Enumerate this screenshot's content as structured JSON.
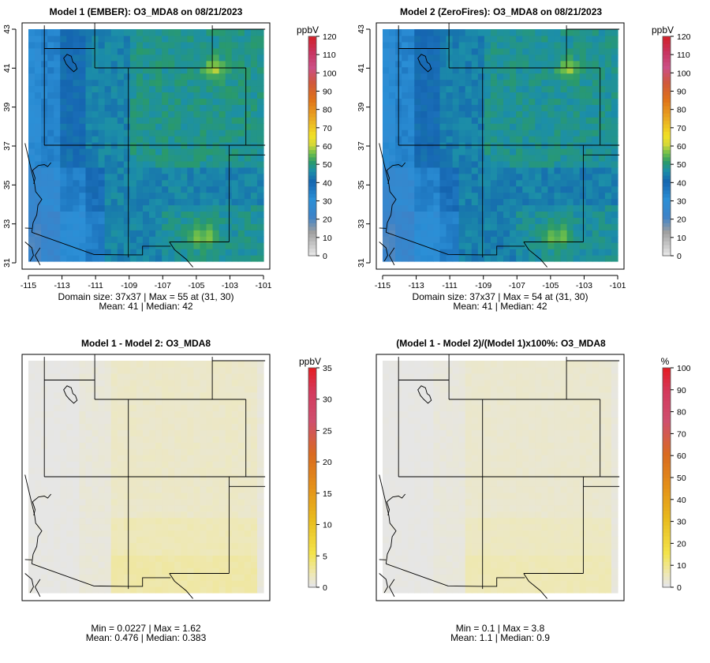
{
  "chart_data": [
    {
      "type": "heatmap",
      "title": "Model 1 (EMBER): O3_MDA8 on 08/21/2023",
      "units": "ppbV",
      "xlim": [
        -115,
        -101
      ],
      "ylim": [
        31,
        43
      ],
      "x_ticks": [
        "-115",
        "-113",
        "-111",
        "-109",
        "-107",
        "-105",
        "-103",
        "-101"
      ],
      "y_ticks": [
        "31",
        "33",
        "35",
        "37",
        "39",
        "41",
        "43"
      ],
      "show_axes": true,
      "colorbar": {
        "min": 0,
        "max": 120,
        "ticks": [
          "0",
          "10",
          "20",
          "30",
          "40",
          "50",
          "60",
          "70",
          "80",
          "90",
          "100",
          "110",
          "120"
        ]
      },
      "field": {
        "kind": "ozone",
        "scale": 1.0
      },
      "stats_line1": "Domain size: 37x37 | Max = 55 at (31, 30)",
      "stats_line2": "Mean: 41 |  Median: 42"
    },
    {
      "type": "heatmap",
      "title": "Model 2 (ZeroFires): O3_MDA8 on 08/21/2023",
      "units": "ppbV",
      "xlim": [
        -115,
        -101
      ],
      "ylim": [
        31,
        43
      ],
      "x_ticks": [
        "-115",
        "-113",
        "-111",
        "-109",
        "-107",
        "-105",
        "-103",
        "-101"
      ],
      "y_ticks": [
        "31",
        "33",
        "35",
        "37",
        "39",
        "41",
        "43"
      ],
      "show_axes": true,
      "colorbar": {
        "min": 0,
        "max": 120,
        "ticks": [
          "0",
          "10",
          "20",
          "30",
          "40",
          "50",
          "60",
          "70",
          "80",
          "90",
          "100",
          "110",
          "120"
        ]
      },
      "field": {
        "kind": "ozone",
        "scale": 0.985
      },
      "stats_line1": "Domain size: 37x37 | Max = 54 at (31, 30)",
      "stats_line2": "Mean: 41 |  Median: 42"
    },
    {
      "type": "heatmap",
      "title": "Model 1 - Model 2: O3_MDA8",
      "units": "ppbV",
      "xlim": [
        -115,
        -101
      ],
      "ylim": [
        31,
        43
      ],
      "x_ticks": [],
      "y_ticks": [],
      "show_axes": false,
      "colorbar": {
        "min": 0,
        "max": 35,
        "ticks": [
          "0",
          "5",
          "10",
          "15",
          "20",
          "25",
          "30",
          "35"
        ]
      },
      "field": {
        "kind": "diff",
        "scale": 1.0
      },
      "stats_line1": "Min = 0.0227 | Max = 1.62",
      "stats_line2": "Mean: 0.476 |  Median: 0.383"
    },
    {
      "type": "heatmap",
      "title": "(Model 1 - Model 2)/(Model 1)x100%: O3_MDA8",
      "units": "%",
      "xlim": [
        -115,
        -101
      ],
      "ylim": [
        31,
        43
      ],
      "x_ticks": [],
      "y_ticks": [],
      "show_axes": false,
      "colorbar": {
        "min": 0,
        "max": 100,
        "ticks": [
          "0",
          "10",
          "20",
          "30",
          "40",
          "50",
          "60",
          "70",
          "80",
          "90",
          "100"
        ]
      },
      "field": {
        "kind": "pct",
        "scale": 1.0
      },
      "stats_line1": "Min = 0.1 | Max = 3.8",
      "stats_line2": "Mean: 1.1 |  Median: 0.9"
    }
  ],
  "colors": {
    "bar_low": "#d9d9d9",
    "bar_mid_blue": "#1a63b0",
    "bar_mid_green": "#2e9e5a",
    "bar_yellow": "#f0e020",
    "bar_orange": "#e58a10",
    "bar_pink": "#d0508a",
    "bar_red": "#e8141e",
    "background_grid": "#e6e6e6"
  }
}
